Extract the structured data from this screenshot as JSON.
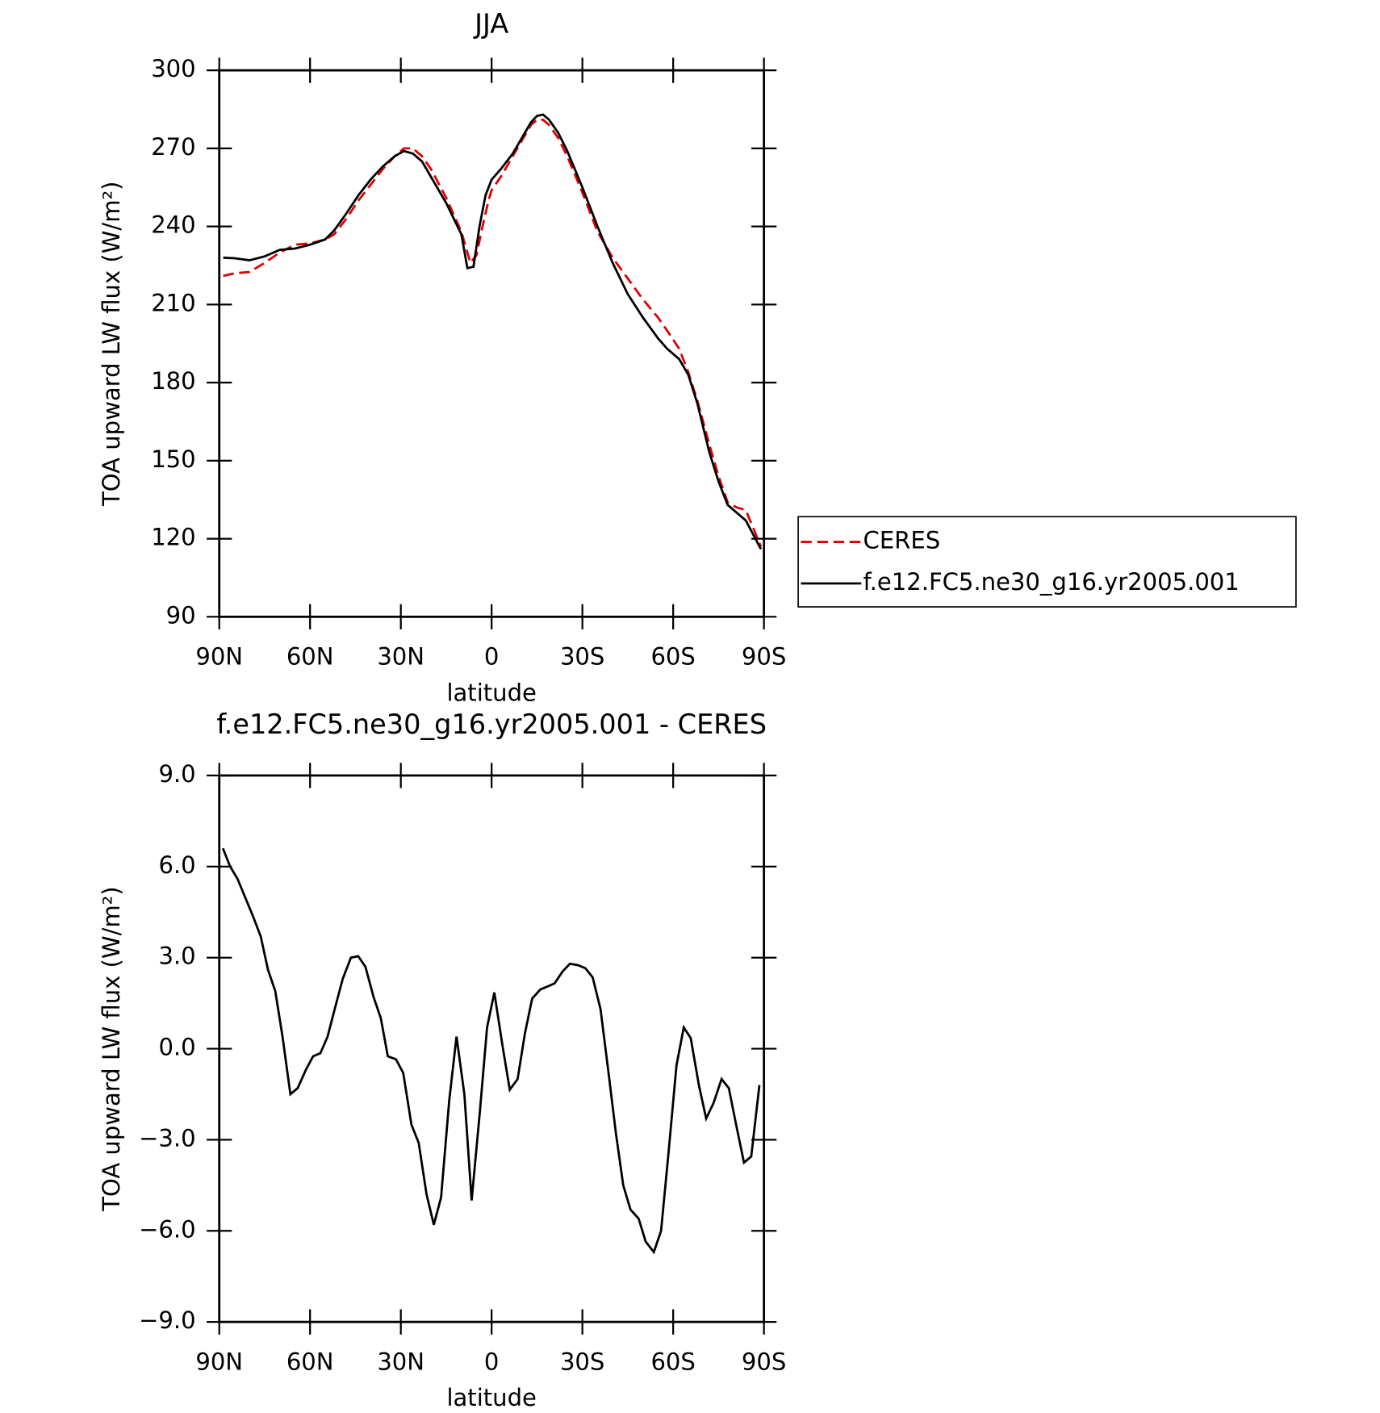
{
  "chart_data": [
    {
      "type": "line",
      "title": "JJA",
      "xlabel": "latitude",
      "ylabel": "TOA upward LW flux (W/m²)",
      "xlim": [
        90,
        -90
      ],
      "ylim": [
        90,
        300
      ],
      "xticks": [
        {
          "value": 90,
          "label": "90N"
        },
        {
          "value": 60,
          "label": "60N"
        },
        {
          "value": 30,
          "label": "30N"
        },
        0,
        {
          "value": -30,
          "label": "30S"
        },
        {
          "value": -60,
          "label": "60S"
        },
        {
          "value": -90,
          "label": "90S"
        }
      ],
      "yticks": [
        90,
        120,
        150,
        180,
        210,
        240,
        270,
        300
      ],
      "legend": "right",
      "series": [
        {
          "name": "CERES",
          "color": "#e00000",
          "dash": true,
          "x": [
            88.7,
            85,
            80,
            75,
            70,
            65,
            60,
            55,
            52,
            48,
            44,
            40,
            36,
            32,
            29,
            26,
            23,
            20,
            15,
            10,
            7,
            5,
            3,
            1,
            0,
            -3,
            -7,
            -10,
            -13,
            -15,
            -17,
            -19,
            -22,
            -25,
            -30,
            -35,
            -40,
            -45,
            -50,
            -55,
            -58,
            -62,
            -65,
            -68,
            -72,
            -75,
            -78,
            -81,
            -84,
            -89
          ],
          "values": [
            221,
            222,
            222.5,
            226,
            230,
            233,
            233.5,
            235,
            237,
            243,
            250,
            256,
            262,
            267,
            270,
            270,
            267,
            262,
            251,
            238,
            226,
            229,
            240,
            250,
            254,
            259,
            267,
            273,
            279,
            281,
            281,
            279,
            274,
            267,
            253,
            238,
            228,
            220,
            212,
            205,
            200,
            193,
            184,
            173,
            156,
            144,
            134,
            132,
            131,
            117
          ]
        },
        {
          "name": "f.e12.FC5.ne30_g16.yr2005.001",
          "color": "#000000",
          "dash": false,
          "x": [
            88.7,
            85,
            80,
            75,
            70,
            65,
            60,
            55,
            52,
            48,
            44,
            40,
            36,
            32,
            29,
            26,
            23,
            20,
            15,
            10,
            8,
            6,
            4,
            2,
            0,
            -3,
            -7,
            -10,
            -13,
            -15,
            -17,
            -19,
            -22,
            -25,
            -30,
            -35,
            -40,
            -45,
            -50,
            -55,
            -58,
            -62,
            -65,
            -68,
            -72,
            -75,
            -78,
            -81,
            -84,
            -89
          ],
          "values": [
            228,
            227.8,
            227,
            228.5,
            231,
            231.5,
            233,
            235,
            238.5,
            245,
            252,
            258,
            263,
            267,
            269,
            268,
            265,
            259,
            249,
            237,
            224,
            224.5,
            240,
            252,
            258,
            262,
            268,
            274,
            280,
            282.5,
            283,
            281,
            276,
            269,
            255,
            240,
            226,
            214,
            205,
            197,
            193,
            189,
            183,
            172,
            153,
            142,
            133,
            130,
            127,
            116
          ]
        }
      ]
    },
    {
      "type": "line",
      "title": "f.e12.FC5.ne30_g16.yr2005.001 - CERES",
      "xlabel": "latitude",
      "ylabel": "TOA upward LW flux (W/m²)",
      "xlim": [
        90,
        -90
      ],
      "ylim": [
        -9,
        9
      ],
      "xticks": [
        {
          "value": 90,
          "label": "90N"
        },
        {
          "value": 60,
          "label": "60N"
        },
        {
          "value": 30,
          "label": "30N"
        },
        0,
        {
          "value": -30,
          "label": "30S"
        },
        {
          "value": -60,
          "label": "60S"
        },
        {
          "value": -90,
          "label": "90S"
        }
      ],
      "yticks": [
        {
          "value": 9,
          "label": "9.0"
        },
        {
          "value": 6,
          "label": "6.0"
        },
        {
          "value": 3,
          "label": "3.0"
        },
        {
          "value": 0,
          "label": "0.0"
        },
        {
          "value": -3,
          "label": "−3.0"
        },
        {
          "value": -6,
          "label": "−6.0"
        },
        {
          "value": -9,
          "label": "−9.0"
        }
      ],
      "series": [
        {
          "color": "#000000",
          "dash": false,
          "x": [
            88.8,
            86.4,
            84,
            79,
            76.3,
            73.9,
            71.5,
            69.1,
            66.5,
            64.1,
            61.4,
            59,
            56.6,
            54.2,
            51.6,
            49.2,
            46.5,
            44.1,
            41.7,
            39,
            36.6,
            34.3,
            31.6,
            29.2,
            26.5,
            24.1,
            21.5,
            19.1,
            16.7,
            14,
            11.6,
            9,
            6.6,
            3.9,
            1.5,
            -0.9,
            -3.6,
            -6,
            -8.6,
            -11,
            -13.4,
            -16.1,
            -18.5,
            -20.8,
            -23.5,
            -25.9,
            -28.6,
            -31,
            -33.4,
            -36,
            -38.4,
            -41.1,
            -43.5,
            -45.9,
            -48.6,
            -50.9,
            -53.6,
            -56,
            -58.4,
            -61.1,
            -63.5,
            -65.8,
            -68.5,
            -70.9,
            -73.3,
            -76,
            -78.4,
            -80.8,
            -83.4,
            -85.8,
            -88.5
          ],
          "values": [
            6.6,
            6.0,
            5.6,
            4.4,
            3.7,
            2.6,
            1.9,
            0.4,
            -1.5,
            -1.3,
            -0.7,
            -0.25,
            -0.15,
            0.4,
            1.4,
            2.3,
            3.0,
            3.05,
            2.7,
            1.7,
            1.0,
            -0.25,
            -0.35,
            -0.8,
            -2.5,
            -3.1,
            -4.8,
            -5.8,
            -4.9,
            -1.7,
            0.4,
            -1.5,
            -5.0,
            -2.1,
            0.7,
            1.85,
            0.1,
            -1.35,
            -1.0,
            0.5,
            1.65,
            1.95,
            2.05,
            2.15,
            2.55,
            2.8,
            2.75,
            2.65,
            2.35,
            1.3,
            -0.6,
            -2.8,
            -4.5,
            -5.3,
            -5.6,
            -6.35,
            -6.7,
            -6.0,
            -3.5,
            -0.55,
            0.7,
            0.35,
            -1.2,
            -2.3,
            -1.8,
            -1.0,
            -1.3,
            -2.5,
            -3.75,
            -3.55,
            -1.2
          ]
        }
      ]
    }
  ]
}
